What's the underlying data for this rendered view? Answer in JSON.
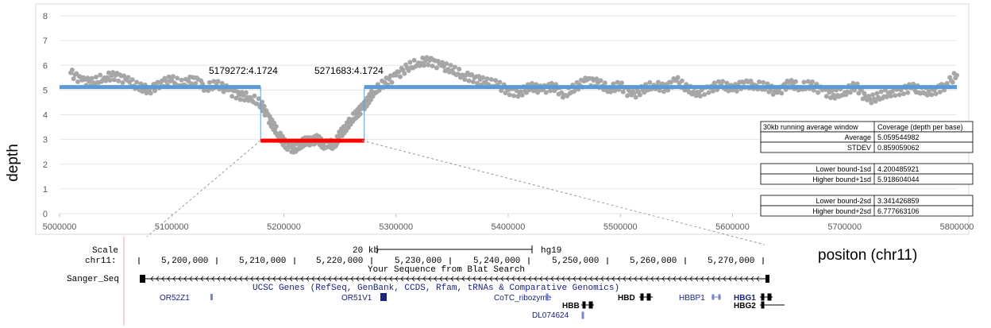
{
  "chart_data": {
    "type": "scatter",
    "xlabel": "positon (chr11)",
    "ylabel": "depth",
    "xlim": [
      5000000,
      5800000
    ],
    "ylim": [
      0,
      8
    ],
    "xticks": [
      "5000000",
      "5100000",
      "5200000",
      "5300000",
      "5400000",
      "5500000",
      "5600000",
      "5700000",
      "5800000"
    ],
    "yticks": [
      "0",
      "1",
      "2",
      "3",
      "4",
      "5",
      "6",
      "7",
      "8"
    ],
    "grid": true,
    "series": [
      {
        "type": "scatter",
        "color": "#a6a6a6",
        "x": [
          5010000,
          5020000,
          5030000,
          5040000,
          5050000,
          5060000,
          5070000,
          5080000,
          5090000,
          5100000,
          5110000,
          5120000,
          5130000,
          5140000,
          5150000,
          5160000,
          5170000,
          5180000,
          5185000,
          5190000,
          5195000,
          5200000,
          5205000,
          5210000,
          5215000,
          5220000,
          5225000,
          5230000,
          5235000,
          5240000,
          5245000,
          5250000,
          5255000,
          5260000,
          5265000,
          5270000,
          5275000,
          5280000,
          5290000,
          5300000,
          5310000,
          5320000,
          5330000,
          5340000,
          5350000,
          5360000,
          5370000,
          5380000,
          5390000,
          5400000,
          5410000,
          5420000,
          5430000,
          5440000,
          5450000,
          5460000,
          5470000,
          5480000,
          5490000,
          5500000,
          5510000,
          5520000,
          5530000,
          5540000,
          5550000,
          5560000,
          5570000,
          5580000,
          5590000,
          5600000,
          5610000,
          5620000,
          5630000,
          5640000,
          5650000,
          5660000,
          5670000,
          5680000,
          5690000,
          5700000,
          5710000,
          5720000,
          5730000,
          5740000,
          5750000,
          5760000,
          5770000,
          5780000,
          5790000,
          5800000
        ],
        "y": [
          5.7,
          5.4,
          5.3,
          5.5,
          5.6,
          5.4,
          5.1,
          5.0,
          5.3,
          5.4,
          5.2,
          5.5,
          5.1,
          5.2,
          5.0,
          4.8,
          4.7,
          4.4,
          4.0,
          3.6,
          3.2,
          2.9,
          2.7,
          2.6,
          2.8,
          3.0,
          2.9,
          3.0,
          2.8,
          2.9,
          2.7,
          3.2,
          3.5,
          3.8,
          4.0,
          4.3,
          4.6,
          4.9,
          5.3,
          5.6,
          5.9,
          6.1,
          6.2,
          6.0,
          5.8,
          5.6,
          5.5,
          5.3,
          5.2,
          5.0,
          4.9,
          5.1,
          5.0,
          5.2,
          4.8,
          5.1,
          5.4,
          5.3,
          5.0,
          5.2,
          4.8,
          5.0,
          5.2,
          5.1,
          5.4,
          5.0,
          4.9,
          5.1,
          5.2,
          5.0,
          5.3,
          5.2,
          5.1,
          4.9,
          5.3,
          5.1,
          5.2,
          5.0,
          4.8,
          4.9,
          5.2,
          4.6,
          4.7,
          4.9,
          5.0,
          5.1,
          4.9,
          5.0,
          5.2,
          5.6
        ]
      },
      {
        "type": "line",
        "color": "#5b9bd5",
        "x": [
          5000000,
          5179272,
          5179272,
          5271683,
          5271683,
          5800000
        ],
        "y": [
          5.12,
          5.12,
          4.1724,
          4.1724,
          5.12,
          5.12
        ]
      },
      {
        "type": "segment",
        "color": "#ff0000",
        "x": [
          5179272,
          5271683
        ],
        "y": [
          2.95,
          2.95
        ]
      }
    ],
    "annotations": [
      {
        "text": "5179272:4.1724",
        "x": 5179272,
        "y": 4.1724
      },
      {
        "text": "5271683:4.1724",
        "x": 5271683,
        "y": 4.1724
      }
    ]
  },
  "stats_table": {
    "header": [
      "30kb running average window",
      "Coverage (depth per base)"
    ],
    "groups": [
      [
        [
          "Average",
          "5.059544982"
        ],
        [
          "STDEV",
          "0.859059062"
        ]
      ],
      [
        [
          "Lower bound-1sd",
          "4.200485921"
        ],
        [
          "Higher bound+1sd",
          "5.918604044"
        ]
      ],
      [
        [
          "Lower bound-2sd",
          "3.341426859"
        ],
        [
          "Higher bound+2sd",
          "6.777663106"
        ]
      ]
    ]
  },
  "browser": {
    "scale_label": "Scale",
    "chr_label": "chr11:",
    "scale_bar_label": "20 kb",
    "assembly": "hg19",
    "positions": [
      "5,200,000",
      "5,210,000",
      "5,220,000",
      "5,230,000",
      "5,240,000",
      "5,250,000",
      "5,260,000",
      "5,270,000"
    ],
    "blat_title": "Your Sequence from Blat Search",
    "track_label": "Sanger_Seq",
    "genes_title": "UCSC Genes (RefSeq, GenBank, CCDS, Rfam, tRNAs & Comparative Genomics)",
    "genes": [
      "OR52Z1",
      "OR51V1",
      "CoTC_ribozyme",
      "HBB",
      "HBD",
      "HBBP1",
      "HBG1",
      "HBG2",
      "DL074624"
    ]
  },
  "colors": {
    "points": "#a6a6a6",
    "average_line": "#5b9bd5",
    "deletion_segment": "#ff0000",
    "gene_text": "#1a237e"
  }
}
